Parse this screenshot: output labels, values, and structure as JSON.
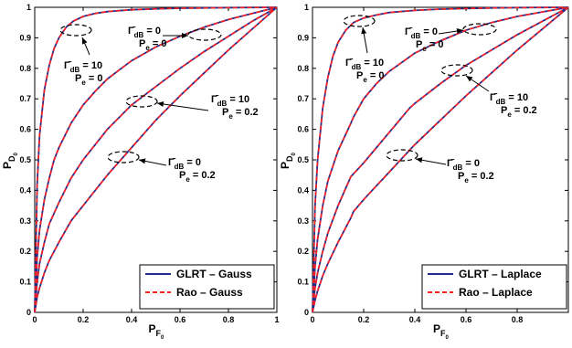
{
  "colors": {
    "glrt": "#1f2d8f",
    "rao": "#ff2020",
    "axis": "#000000"
  },
  "chart_data": [
    {
      "type": "line",
      "panel": "left",
      "xlabel_main": "P",
      "xlabel_sub": "F",
      "xlabel_subsub": "0",
      "ylabel_main": "P",
      "ylabel_sub": "D",
      "ylabel_subsub": "0",
      "xlim": [
        0,
        1
      ],
      "ylim": [
        0,
        1
      ],
      "xticks": [
        0,
        0.2,
        0.4,
        0.6,
        0.8,
        1
      ],
      "xtick_labels": [
        "0",
        "0.2",
        "0.4",
        "0.6",
        "0.8",
        "1"
      ],
      "yticks": [
        0,
        0.1,
        0.2,
        0.3,
        0.4,
        0.5,
        0.6,
        0.7,
        0.8,
        0.9,
        1
      ],
      "ytick_labels": [
        "0",
        "0.1",
        "0.2",
        "0.3",
        "0.4",
        "0.5",
        "0.6",
        "0.7",
        "0.8",
        "0.9",
        "1"
      ],
      "grid": false,
      "legend_position": "bottom-right",
      "legend": [
        {
          "label": "GLRT – Gauss",
          "style": "solid",
          "color_key": "glrt"
        },
        {
          "label": "Rao – Gauss",
          "style": "dashed",
          "color_key": "rao"
        }
      ],
      "curves": [
        {
          "x": [
            0,
            0.01,
            0.02,
            0.04,
            0.06,
            0.08,
            0.1,
            0.13,
            0.16,
            0.2,
            0.25,
            0.3,
            0.4,
            0.5,
            0.6,
            0.7,
            0.8,
            0.9,
            1.0
          ],
          "y": [
            0,
            0.42,
            0.58,
            0.73,
            0.81,
            0.865,
            0.9,
            0.935,
            0.955,
            0.97,
            0.98,
            0.986,
            0.992,
            0.995,
            0.997,
            0.998,
            0.999,
            0.9995,
            1.0
          ]
        },
        {
          "x": [
            0,
            0.01,
            0.02,
            0.04,
            0.06,
            0.08,
            0.1,
            0.15,
            0.2,
            0.25,
            0.3,
            0.4,
            0.5,
            0.6,
            0.7,
            0.8,
            0.9,
            1.0
          ],
          "y": [
            0,
            0.18,
            0.27,
            0.37,
            0.44,
            0.5,
            0.54,
            0.62,
            0.68,
            0.725,
            0.765,
            0.825,
            0.87,
            0.905,
            0.935,
            0.96,
            0.98,
            1.0
          ]
        },
        {
          "x": [
            0,
            0.01,
            0.02,
            0.04,
            0.06,
            0.1,
            0.15,
            0.2,
            0.25,
            0.3,
            0.4,
            0.5,
            0.6,
            0.7,
            0.8,
            0.9,
            1.0
          ],
          "y": [
            0,
            0.1,
            0.16,
            0.23,
            0.29,
            0.36,
            0.44,
            0.5,
            0.55,
            0.6,
            0.68,
            0.74,
            0.8,
            0.855,
            0.905,
            0.955,
            1.0
          ]
        },
        {
          "x": [
            0,
            0.01,
            0.02,
            0.04,
            0.06,
            0.1,
            0.15,
            0.2,
            0.3,
            0.4,
            0.5,
            0.6,
            0.7,
            0.8,
            0.9,
            1.0
          ],
          "y": [
            0,
            0.05,
            0.08,
            0.13,
            0.17,
            0.23,
            0.3,
            0.35,
            0.45,
            0.54,
            0.63,
            0.71,
            0.785,
            0.86,
            0.93,
            1.0
          ]
        }
      ],
      "annotations": [
        {
          "gamma": "10",
          "pe": "0",
          "value": "0"
        },
        {
          "gamma": "0",
          "pe": "0",
          "value": "0"
        },
        {
          "gamma": "10",
          "pe": "0.2",
          "value": "10"
        },
        {
          "gamma": "0",
          "pe": "0.2",
          "value": "0"
        }
      ]
    },
    {
      "type": "line",
      "panel": "right",
      "xlabel_main": "P",
      "xlabel_sub": "F",
      "xlabel_subsub": "0",
      "ylabel_main": "P",
      "ylabel_sub": "D",
      "ylabel_subsub": "0",
      "xlim": [
        0,
        1
      ],
      "ylim": [
        0,
        1
      ],
      "xticks": [
        0,
        0.2,
        0.4,
        0.6,
        0.8
      ],
      "xtick_labels": [
        "0",
        "0.2",
        "0.4",
        "0.6",
        "0.8"
      ],
      "yticks": [
        0,
        0.1,
        0.2,
        0.3,
        0.4,
        0.5,
        0.6,
        0.7,
        0.8,
        0.9,
        1
      ],
      "ytick_labels": [
        "0",
        "0.1",
        "0.2",
        "0.3",
        "0.4",
        "0.5",
        "0.6",
        "0.7",
        "0.8",
        "0.9",
        "1"
      ],
      "grid": false,
      "legend_position": "bottom-right",
      "legend": [
        {
          "label": "GLRT – Laplace",
          "style": "solid",
          "color_key": "glrt"
        },
        {
          "label": "Rao – Laplace",
          "style": "dashed",
          "color_key": "rao"
        }
      ],
      "curves": [
        {
          "x": [
            0,
            0.01,
            0.02,
            0.04,
            0.06,
            0.08,
            0.1,
            0.13,
            0.16,
            0.2,
            0.25,
            0.3,
            0.4,
            0.5,
            0.6,
            0.7,
            0.8,
            0.9,
            1.0
          ],
          "y": [
            0,
            0.35,
            0.5,
            0.67,
            0.77,
            0.84,
            0.885,
            0.925,
            0.95,
            0.965,
            0.975,
            0.983,
            0.99,
            0.994,
            0.996,
            0.998,
            0.999,
            0.9995,
            1.0
          ]
        },
        {
          "x": [
            0,
            0.01,
            0.02,
            0.04,
            0.06,
            0.1,
            0.15,
            0.16,
            0.2,
            0.25,
            0.3,
            0.4,
            0.5,
            0.6,
            0.7,
            0.8,
            0.9,
            1.0
          ],
          "y": [
            0,
            0.15,
            0.24,
            0.35,
            0.43,
            0.53,
            0.62,
            0.64,
            0.7,
            0.75,
            0.79,
            0.85,
            0.89,
            0.925,
            0.95,
            0.97,
            0.985,
            1.0
          ]
        },
        {
          "x": [
            0,
            0.01,
            0.02,
            0.04,
            0.06,
            0.1,
            0.15,
            0.2,
            0.25,
            0.3,
            0.38,
            0.4,
            0.5,
            0.6,
            0.7,
            0.8,
            0.9,
            1.0
          ],
          "y": [
            0,
            0.08,
            0.13,
            0.2,
            0.26,
            0.35,
            0.445,
            0.49,
            0.54,
            0.59,
            0.67,
            0.685,
            0.75,
            0.81,
            0.86,
            0.91,
            0.955,
            1.0
          ]
        },
        {
          "x": [
            0,
            0.01,
            0.02,
            0.04,
            0.06,
            0.1,
            0.15,
            0.16,
            0.2,
            0.3,
            0.4,
            0.5,
            0.6,
            0.7,
            0.8,
            0.9,
            1.0
          ],
          "y": [
            0,
            0.04,
            0.07,
            0.12,
            0.16,
            0.23,
            0.31,
            0.33,
            0.37,
            0.46,
            0.55,
            0.63,
            0.71,
            0.785,
            0.86,
            0.93,
            1.0
          ]
        }
      ],
      "annotations": [
        {
          "gamma": "10",
          "pe": "0",
          "value": "10"
        },
        {
          "gamma": "0",
          "pe": "0",
          "value": "0"
        },
        {
          "gamma": "10",
          "pe": "0.2",
          "value": "10"
        },
        {
          "gamma": "0",
          "pe": "0.2",
          "value": "0"
        }
      ]
    }
  ]
}
